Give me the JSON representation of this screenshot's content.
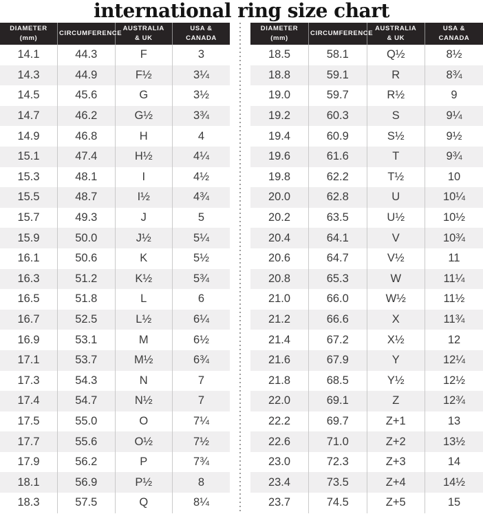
{
  "title": "international ring size chart",
  "header_lines": [
    [
      "DIAMETER",
      "(mm)"
    ],
    [
      "CIRCUMFERENCE"
    ],
    [
      "AUSTRALIA",
      "& UK"
    ],
    [
      "USA &",
      "CANADA"
    ]
  ],
  "colors": {
    "header_bg": "#272324",
    "header_text": "#f7f6f6",
    "row_stripe": "#f0eff0",
    "body_text": "#3b3b3b",
    "column_rule": "#c9c9c9",
    "divider_dots": "#9b9b9b"
  },
  "chart_data": {
    "type": "table",
    "title": "international ring size chart",
    "columns": [
      "DIAMETER (mm)",
      "CIRCUMFERENCE",
      "AUSTRALIA & UK",
      "USA & CANADA"
    ],
    "layout": "two side-by-side tables separated by a vertical dotted line",
    "left_rows": [
      [
        "14.1",
        "44.3",
        "F",
        "3"
      ],
      [
        "14.3",
        "44.9",
        "F½",
        "3¼"
      ],
      [
        "14.5",
        "45.6",
        "G",
        "3½"
      ],
      [
        "14.7",
        "46.2",
        "G½",
        "3¾"
      ],
      [
        "14.9",
        "46.8",
        "H",
        "4"
      ],
      [
        "15.1",
        "47.4",
        "H½",
        "4¼"
      ],
      [
        "15.3",
        "48.1",
        "I",
        "4½"
      ],
      [
        "15.5",
        "48.7",
        "I½",
        "4¾"
      ],
      [
        "15.7",
        "49.3",
        "J",
        "5"
      ],
      [
        "15.9",
        "50.0",
        "J½",
        "5¼"
      ],
      [
        "16.1",
        "50.6",
        "K",
        "5½"
      ],
      [
        "16.3",
        "51.2",
        "K½",
        "5¾"
      ],
      [
        "16.5",
        "51.8",
        "L",
        "6"
      ],
      [
        "16.7",
        "52.5",
        "L½",
        "6¼"
      ],
      [
        "16.9",
        "53.1",
        "M",
        "6½"
      ],
      [
        "17.1",
        "53.7",
        "M½",
        "6¾"
      ],
      [
        "17.3",
        "54.3",
        "N",
        "7"
      ],
      [
        "17.4",
        "54.7",
        "N½",
        "7"
      ],
      [
        "17.5",
        "55.0",
        "O",
        "7¼"
      ],
      [
        "17.7",
        "55.6",
        "O½",
        "7½"
      ],
      [
        "17.9",
        "56.2",
        "P",
        "7¾"
      ],
      [
        "18.1",
        "56.9",
        "P½",
        "8"
      ],
      [
        "18.3",
        "57.5",
        "Q",
        "8¼"
      ]
    ],
    "right_rows": [
      [
        "18.5",
        "58.1",
        "Q½",
        "8½"
      ],
      [
        "18.8",
        "59.1",
        "R",
        "8¾"
      ],
      [
        "19.0",
        "59.7",
        "R½",
        "9"
      ],
      [
        "19.2",
        "60.3",
        "S",
        "9¼"
      ],
      [
        "19.4",
        "60.9",
        "S½",
        "9½"
      ],
      [
        "19.6",
        "61.6",
        "T",
        "9¾"
      ],
      [
        "19.8",
        "62.2",
        "T½",
        "10"
      ],
      [
        "20.0",
        "62.8",
        "U",
        "10¼"
      ],
      [
        "20.2",
        "63.5",
        "U½",
        "10½"
      ],
      [
        "20.4",
        "64.1",
        "V",
        "10¾"
      ],
      [
        "20.6",
        "64.7",
        "V½",
        "11"
      ],
      [
        "20.8",
        "65.3",
        "W",
        "11¼"
      ],
      [
        "21.0",
        "66.0",
        "W½",
        "11½"
      ],
      [
        "21.2",
        "66.6",
        "X",
        "11¾"
      ],
      [
        "21.4",
        "67.2",
        "X½",
        "12"
      ],
      [
        "21.6",
        "67.9",
        "Y",
        "12¼"
      ],
      [
        "21.8",
        "68.5",
        "Y½",
        "12½"
      ],
      [
        "22.0",
        "69.1",
        "Z",
        "12¾"
      ],
      [
        "22.2",
        "69.7",
        "Z+1",
        "13"
      ],
      [
        "22.6",
        "71.0",
        "Z+2",
        "13½"
      ],
      [
        "23.0",
        "72.3",
        "Z+3",
        "14"
      ],
      [
        "23.4",
        "73.5",
        "Z+4",
        "14½"
      ],
      [
        "23.7",
        "74.5",
        "Z+5",
        "15"
      ]
    ]
  }
}
